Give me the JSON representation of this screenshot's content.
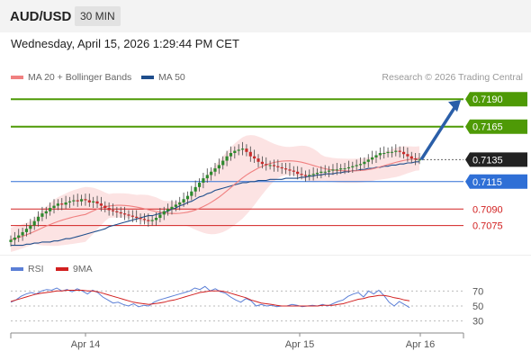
{
  "header": {
    "pair": "AUD/USD",
    "timeframe": "30 MIN",
    "datetime": "Wednesday, April 15, 2026 1:29:44 PM CET"
  },
  "legend": {
    "ma20": "MA 20 + Bollinger Bands",
    "ma50": "MA 50",
    "credit": "Research © 2026 Trading Central"
  },
  "rsi_legend": {
    "rsi": "RSI",
    "ma9": "9MA"
  },
  "colors": {
    "resistance": "#4e9a06",
    "current": "#222222",
    "pivot": "#2f6fd6",
    "support": "#d22020",
    "ma20": "#f08080",
    "ma50": "#1f4e8c",
    "band": "#fbdada",
    "rsi": "#5b7fd6",
    "rsi_ma": "#d22020",
    "arrow": "#2a5ea8"
  },
  "chart_data": [
    {
      "type": "candlestick",
      "title": "AUD/USD",
      "timeframe": "30 MIN",
      "x_ticks": [
        "Apr 14",
        "Apr 15",
        "Apr 16"
      ],
      "ylim": [
        0.7055,
        0.72
      ],
      "levels": [
        {
          "value": "0.7190",
          "kind": "resistance"
        },
        {
          "value": "0.7165",
          "kind": "resistance"
        },
        {
          "value": "0.7135",
          "kind": "current"
        },
        {
          "value": "0.7115",
          "kind": "pivot"
        },
        {
          "value": "0.7090",
          "kind": "support"
        },
        {
          "value": "0.7075",
          "kind": "support"
        }
      ],
      "forecast_target": 0.719,
      "series_close": [
        0.7062,
        0.7064,
        0.7066,
        0.7069,
        0.7072,
        0.7075,
        0.7079,
        0.7083,
        0.7086,
        0.7088,
        0.7091,
        0.7093,
        0.7095,
        0.7094,
        0.7096,
        0.7097,
        0.7098,
        0.7097,
        0.7099,
        0.7098,
        0.7096,
        0.7097,
        0.7095,
        0.7093,
        0.7091,
        0.7089,
        0.7088,
        0.7087,
        0.7086,
        0.7085,
        0.7084,
        0.7083,
        0.7082,
        0.7081,
        0.708,
        0.7079,
        0.708,
        0.7082,
        0.7085,
        0.7088,
        0.709,
        0.7092,
        0.7094,
        0.7096,
        0.7099,
        0.7102,
        0.7106,
        0.711,
        0.7114,
        0.7118,
        0.7121,
        0.7124,
        0.7127,
        0.713,
        0.7134,
        0.7138,
        0.7141,
        0.7143,
        0.7144,
        0.7145,
        0.7142,
        0.7138,
        0.7136,
        0.7133,
        0.7131,
        0.713,
        0.713,
        0.7129,
        0.7128,
        0.7127,
        0.7126,
        0.7125,
        0.7124,
        0.7122,
        0.7121,
        0.712,
        0.7121,
        0.7122,
        0.7123,
        0.7124,
        0.7124,
        0.7125,
        0.7126,
        0.7126,
        0.7127,
        0.7127,
        0.7128,
        0.7129,
        0.713,
        0.7131,
        0.7133,
        0.7135,
        0.7137,
        0.7139,
        0.7141,
        0.7141,
        0.7142,
        0.7142,
        0.7143,
        0.7142,
        0.714,
        0.7138,
        0.7136,
        0.7135,
        0.7135
      ],
      "ma50": [
        0.7057,
        0.7057,
        0.7057,
        0.7057,
        0.7058,
        0.7058,
        0.7059,
        0.7059,
        0.706,
        0.706,
        0.706,
        0.7061,
        0.7061,
        0.7062,
        0.7063,
        0.7063,
        0.7064,
        0.7065,
        0.7066,
        0.7067,
        0.7068,
        0.7069,
        0.707,
        0.7071,
        0.7072,
        0.7074,
        0.7075,
        0.7076,
        0.7077,
        0.7078,
        0.7079,
        0.708,
        0.7081,
        0.7082,
        0.7083,
        0.7084,
        0.7084,
        0.7085,
        0.7086,
        0.7087,
        0.7088,
        0.709,
        0.7091,
        0.7093,
        0.7094,
        0.7096,
        0.7097,
        0.7099,
        0.7101,
        0.7102,
        0.7104,
        0.7105,
        0.7107,
        0.7108,
        0.7109,
        0.711,
        0.7111,
        0.7112,
        0.7113,
        0.7114,
        0.7114,
        0.7115,
        0.7115,
        0.7116,
        0.7116,
        0.7116,
        0.7117,
        0.7117,
        0.7117,
        0.7117,
        0.7118,
        0.7118,
        0.7118,
        0.7118,
        0.7119,
        0.7119,
        0.712,
        0.712,
        0.7121,
        0.7121,
        0.7122,
        0.7122,
        0.7122,
        0.7123,
        0.7123,
        0.7124,
        0.7124,
        0.7125,
        0.7125,
        0.7126,
        0.7126,
        0.7127,
        0.7127,
        0.7128,
        0.7128,
        0.7129,
        0.7129,
        0.713,
        0.713,
        0.7131,
        0.7131,
        0.7132,
        0.7132,
        0.7133,
        0.7133
      ]
    },
    {
      "type": "line",
      "title": "RSI",
      "ylim": [
        20,
        80
      ],
      "y_ticks": [
        70,
        50,
        30
      ],
      "series": [
        {
          "name": "RSI",
          "values": [
            55,
            58,
            63,
            66,
            68,
            66,
            70,
            72,
            71,
            74,
            70,
            72,
            69,
            73,
            70,
            66,
            71,
            68,
            62,
            58,
            54,
            55,
            52,
            50,
            53,
            49,
            51,
            50,
            55,
            58,
            60,
            62,
            64,
            66,
            68,
            70,
            74,
            72,
            76,
            70,
            73,
            69,
            67,
            62,
            58,
            55,
            60,
            57,
            50,
            52,
            50,
            51,
            49,
            50,
            50,
            52,
            51,
            49,
            50,
            51,
            50,
            52,
            50,
            53,
            56,
            58,
            63,
            66,
            68,
            62,
            70,
            66,
            71,
            64,
            55,
            50,
            56,
            52,
            48
          ]
        },
        {
          "name": "9MA",
          "values": [
            56,
            58,
            60,
            62,
            64,
            66,
            67,
            68,
            69,
            70,
            70,
            71,
            71,
            71,
            71,
            70,
            70,
            69,
            67,
            65,
            63,
            61,
            59,
            57,
            55,
            54,
            53,
            52,
            53,
            54,
            55,
            57,
            58,
            60,
            62,
            64,
            66,
            68,
            69,
            70,
            70,
            70,
            69,
            67,
            65,
            63,
            61,
            58,
            56,
            54,
            53,
            52,
            51,
            50,
            50,
            50,
            50,
            50,
            50,
            50,
            50,
            51,
            51,
            51,
            52,
            53,
            55,
            57,
            59,
            60,
            62,
            63,
            64,
            64,
            63,
            61,
            60,
            58,
            57
          ]
        }
      ]
    }
  ]
}
